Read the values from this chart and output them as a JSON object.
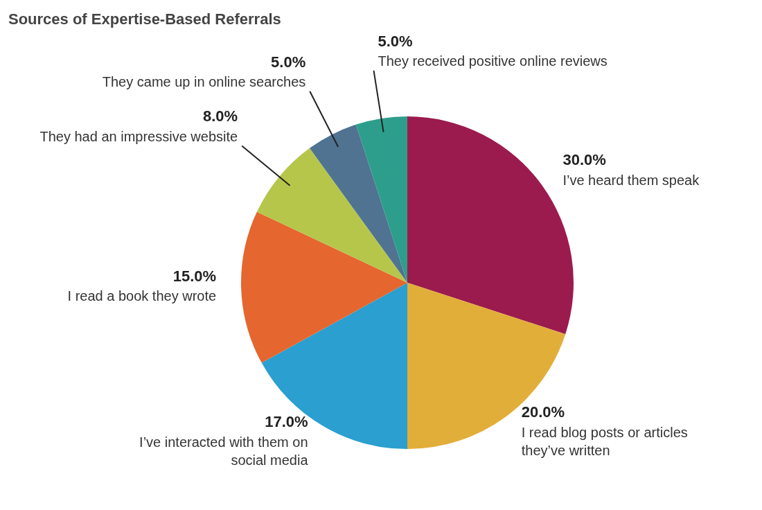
{
  "chart_data": {
    "type": "pie",
    "title": "Sources of Expertise-Based Referrals",
    "categories": [
      "I’ve heard them speak",
      "I read blog posts or articles they’ve written",
      "I’ve interacted with them on social media",
      "I read a book they wrote",
      "They had an impressive website",
      "They came up in online searches",
      "They received positive online reviews"
    ],
    "values": [
      30,
      20,
      17,
      15,
      8,
      5,
      5
    ],
    "value_labels": [
      "30.0%",
      "20.0%",
      "17.0%",
      "15.0%",
      "8.0%",
      "5.0%",
      "5.0%"
    ],
    "colors": [
      "#9b1b4e",
      "#e2ae3a",
      "#2a9fd0",
      "#e5662e",
      "#b6c64b",
      "#4f7391",
      "#2e9e8c"
    ],
    "legend": false
  }
}
